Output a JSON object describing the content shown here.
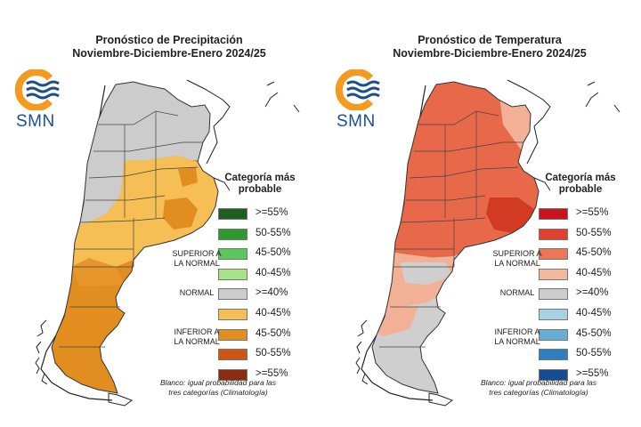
{
  "colors": {
    "precip_gray": "#cccccc",
    "precip_yellow": "#f6bf55",
    "precip_orange": "#e28d20",
    "temp_base": "#e8684a",
    "temp_dark": "#d23a24",
    "temp_light": "#f2b196",
    "temp_gray": "#cfcfcf",
    "logo_blue": "#1b4f8e",
    "logo_orange": "#f39a1f"
  },
  "maps": [
    {
      "title_line1": "Pronóstico de Precipitación",
      "title_line2": "Noviembre-Diciembre-Enero 2024/25",
      "logo_text": "SMN",
      "legend_title_line1": "Categoría más",
      "legend_title_line2": "probable",
      "legend_items": [
        {
          "label": ">=55%",
          "color": "#1f5e1f"
        },
        {
          "label": "50-55%",
          "color": "#2e9a2e"
        },
        {
          "label": "45-50%",
          "color": "#5ac85a"
        },
        {
          "label": "40-45%",
          "color": "#a6e48a"
        },
        {
          "label": ">=40%",
          "color": "#cccccc"
        },
        {
          "label": "40-45%",
          "color": "#f6bf55"
        },
        {
          "label": "45-50%",
          "color": "#e28d20"
        },
        {
          "label": "50-55%",
          "color": "#cf5514"
        },
        {
          "label": ">=55%",
          "color": "#8a2c0d"
        }
      ],
      "group_superior_line1": "SUPERIOR A",
      "group_superior_line2": "LA NORMAL",
      "group_normal": "NORMAL",
      "group_inferior_line1": "INFERIOR A",
      "group_inferior_line2": "LA NORMAL",
      "note_line1": "Blanco: igual probabilidad para las",
      "note_line2": "tres categorías (Climatología)"
    },
    {
      "title_line1": "Pronóstico de Temperatura",
      "title_line2": "Noviembre-Diciembre-Enero 2024/25",
      "logo_text": "SMN",
      "legend_title_line1": "Categoría más",
      "legend_title_line2": "probable",
      "legend_items": [
        {
          "label": ">=55%",
          "color": "#c8141e"
        },
        {
          "label": "50-55%",
          "color": "#e0402c"
        },
        {
          "label": "45-50%",
          "color": "#ee7656"
        },
        {
          "label": "40-45%",
          "color": "#f4b89c"
        },
        {
          "label": ">=40%",
          "color": "#cccccc"
        },
        {
          "label": "40-45%",
          "color": "#a7d2e6"
        },
        {
          "label": "45-50%",
          "color": "#66aed4"
        },
        {
          "label": "50-55%",
          "color": "#2f7fc0"
        },
        {
          "label": ">=55%",
          "color": "#154d94"
        }
      ],
      "group_superior_line1": "SUPERIOR A",
      "group_superior_line2": "LA NORMAL",
      "group_normal": "NORMAL",
      "group_inferior_line1": "INFERIOR A",
      "group_inferior_line2": "LA NORMAL",
      "note_line1": "Blanco: igual probabilidad para las",
      "note_line2": "tres categorías (Climatología)"
    }
  ]
}
